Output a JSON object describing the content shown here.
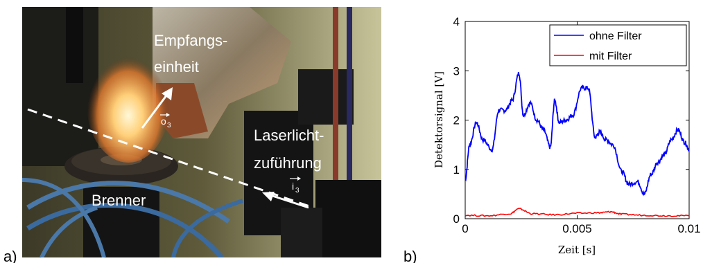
{
  "panel_a": {
    "letter": "a)",
    "labels": {
      "empfang_line1": "Empfangs-",
      "empfang_line2": "einheit",
      "laser_line1": "Laserlicht-",
      "laser_line2": "zuführung",
      "brenner": "Brenner",
      "vec_o": "o",
      "vec_o_sub": "3",
      "vec_i": "i",
      "vec_i_sub": "3"
    }
  },
  "panel_b": {
    "letter": "b)"
  },
  "chart_data": {
    "type": "line",
    "xlabel": "Zeit [s]",
    "ylabel": "Detektorsignal [V]",
    "xlim": [
      0,
      0.01
    ],
    "ylim": [
      0,
      4
    ],
    "xticks": [
      0,
      0.005,
      0.01
    ],
    "xtick_labels": [
      "0",
      "0.005",
      "0.01"
    ],
    "yticks": [
      0,
      1,
      2,
      3,
      4
    ],
    "ytick_labels": [
      "0",
      "1",
      "2",
      "3",
      "4"
    ],
    "legend_position": "top-right",
    "series": [
      {
        "name": "ohne Filter",
        "color": "#0000ff",
        "x": [
          0,
          0.0002,
          0.0005,
          0.0008,
          0.0012,
          0.0015,
          0.0018,
          0.0021,
          0.0024,
          0.0026,
          0.0029,
          0.0032,
          0.0035,
          0.0038,
          0.004,
          0.0042,
          0.0045,
          0.0048,
          0.0052,
          0.0055,
          0.0058,
          0.006,
          0.0063,
          0.0066,
          0.007,
          0.0073,
          0.0077,
          0.008,
          0.0083,
          0.0086,
          0.0089,
          0.0092,
          0.0095,
          0.0098,
          0.01
        ],
        "y": [
          0.8,
          1.5,
          1.95,
          1.6,
          1.4,
          2.2,
          2.2,
          2.4,
          2.95,
          2.1,
          2.35,
          2.0,
          1.8,
          1.45,
          2.4,
          1.95,
          2.0,
          2.1,
          2.65,
          2.65,
          1.65,
          1.75,
          1.6,
          1.5,
          0.95,
          0.7,
          0.75,
          0.5,
          0.9,
          1.15,
          1.3,
          1.6,
          1.8,
          1.55,
          1.4
        ]
      },
      {
        "name": "mit Filter",
        "color": "#ff0000",
        "x": [
          0,
          0.001,
          0.002,
          0.0024,
          0.003,
          0.004,
          0.005,
          0.006,
          0.0065,
          0.007,
          0.008,
          0.009,
          0.01
        ],
        "y": [
          0.07,
          0.06,
          0.1,
          0.2,
          0.1,
          0.08,
          0.11,
          0.12,
          0.14,
          0.09,
          0.07,
          0.06,
          0.06
        ]
      }
    ]
  }
}
